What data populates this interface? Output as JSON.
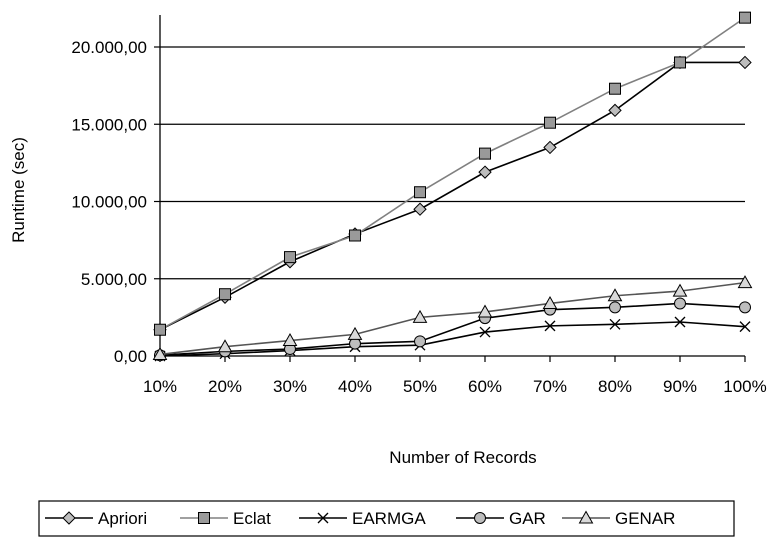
{
  "chart_data": {
    "type": "line",
    "categories": [
      "10%",
      "20%",
      "30%",
      "40%",
      "50%",
      "60%",
      "70%",
      "80%",
      "90%",
      "100%"
    ],
    "xlabel": "Number of Records",
    "ylabel": "Runtime (sec)",
    "ylim": [
      0,
      20000
    ],
    "yticks": [
      0,
      5000,
      10000,
      15000,
      20000
    ],
    "ytick_labels": [
      "0,00",
      "5.000,00",
      "10.000,00",
      "15.000,00",
      "20.000,00"
    ],
    "grid": "horizontal",
    "legend_position": "bottom",
    "series": [
      {
        "name": "Apriori",
        "marker": "diamond",
        "marker_fill": "#bdbdbd",
        "line_color": "#000000",
        "values": [
          1700,
          3800,
          6100,
          7900,
          9500,
          11900,
          13500,
          15900,
          19000,
          19000
        ]
      },
      {
        "name": "Eclat",
        "marker": "square",
        "marker_fill": "#9a9a9a",
        "line_color": "#808080",
        "values": [
          1700,
          4000,
          6400,
          7800,
          10600,
          13100,
          15100,
          17300,
          19000,
          21900
        ]
      },
      {
        "name": "EARMGA",
        "marker": "x",
        "marker_fill": "none",
        "line_color": "#000000",
        "values": [
          0,
          150,
          350,
          600,
          700,
          1550,
          1950,
          2050,
          2200,
          1900
        ]
      },
      {
        "name": "GAR",
        "marker": "circle",
        "marker_fill": "#bdbdbd",
        "line_color": "#000000",
        "values": [
          50,
          300,
          450,
          800,
          950,
          2450,
          3000,
          3150,
          3400,
          3150
        ]
      },
      {
        "name": "GENAR",
        "marker": "triangle",
        "marker_fill": "#d9d9d9",
        "line_color": "#555555",
        "values": [
          100,
          600,
          1000,
          1400,
          2500,
          2850,
          3400,
          3900,
          4200,
          4750
        ]
      }
    ]
  }
}
